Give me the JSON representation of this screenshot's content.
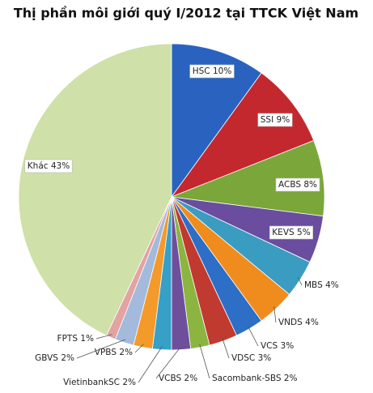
{
  "chart_data": {
    "type": "pie",
    "title": "Thị phần môi giới quý I/2012 tại TTCK Việt Nam",
    "categories": [
      "HSC",
      "SSI",
      "ACBS",
      "KEVS",
      "MBS",
      "VNDS",
      "VCS",
      "VDSC",
      "Sacombank-SBS",
      "VCBS",
      "VietinbankSC",
      "VPBS",
      "GBVS",
      "FPTS",
      "Khác"
    ],
    "values": [
      10,
      9,
      8,
      5,
      4,
      4,
      3,
      3,
      2,
      2,
      2,
      2,
      2,
      1,
      43
    ],
    "value_labels": [
      "10%",
      "9%",
      "8%",
      "5%",
      "4%",
      "4%",
      "3%",
      "3%",
      "2%",
      "2%",
      "2%",
      "2%",
      "2%",
      "1%",
      "43%"
    ],
    "colors": [
      "#2a63bf",
      "#c3282e",
      "#7ba63a",
      "#6a4d9e",
      "#3b9cc2",
      "#f08c1e",
      "#2d6ec6",
      "#c13a30",
      "#8bb540",
      "#6e4f9c",
      "#36a0c7",
      "#f39a2a",
      "#a3badc",
      "#e2a3a2",
      "#cfe0a8"
    ]
  }
}
